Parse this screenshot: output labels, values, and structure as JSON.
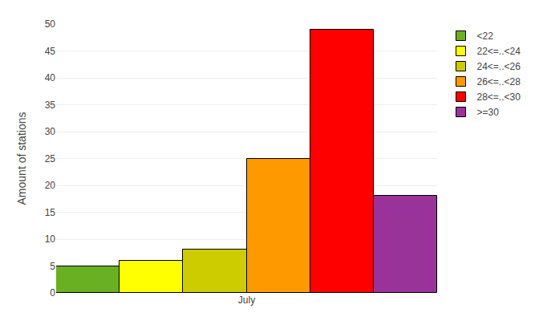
{
  "chart_data": {
    "type": "bar",
    "ylabel": "Amount of stations",
    "categories": [
      "July"
    ],
    "series": [
      {
        "name": "<22",
        "color": "#6ab023",
        "values": [
          5
        ]
      },
      {
        "name": "22<=..<24",
        "color": "#ffff00",
        "values": [
          6
        ]
      },
      {
        "name": "24<=..<26",
        "color": "#cccc00",
        "values": [
          8
        ]
      },
      {
        "name": "26<=..<28",
        "color": "#ff9900",
        "values": [
          25
        ]
      },
      {
        "name": "28<=..<30",
        "color": "#ff0000",
        "values": [
          49
        ]
      },
      {
        "name": ">=30",
        "color": "#993399",
        "values": [
          18
        ]
      }
    ],
    "ylim": [
      0,
      50
    ],
    "yticks": [
      0,
      5,
      10,
      15,
      20,
      25,
      30,
      35,
      40,
      45,
      50
    ],
    "grid": true,
    "legend": "right"
  }
}
